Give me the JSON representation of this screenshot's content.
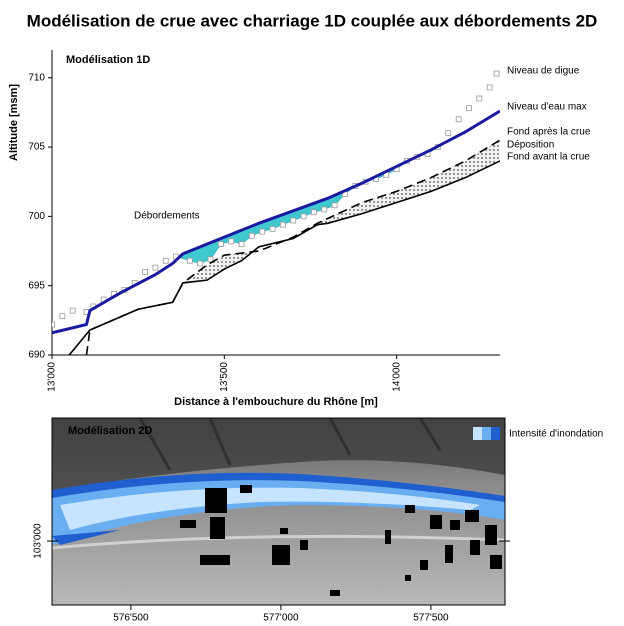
{
  "title": "Modélisation de crue avec charriage 1D couplée aux débordements 2D",
  "chart_data": [
    {
      "type": "line",
      "panel_label": "Modélisation 1D",
      "x_label": "Distance à l'embouchure du Rhône [m]",
      "y_label": "Altitude [msm]",
      "xlim": [
        13000,
        14300
      ],
      "ylim": [
        690,
        712
      ],
      "xticks": [
        {
          "value": 13000,
          "label": "13'000"
        },
        {
          "value": 13500,
          "label": "13'500"
        },
        {
          "value": 14000,
          "label": "14'000"
        }
      ],
      "yticks": [
        690,
        695,
        700,
        705,
        710
      ],
      "series": [
        {
          "name": "Niveau de digue",
          "color": "#999999",
          "style": "markers",
          "x": [
            13000,
            13030,
            13060,
            13100,
            13120,
            13150,
            13180,
            13210,
            13240,
            13270,
            13300,
            13330,
            13360,
            13400,
            13430,
            13460,
            13490,
            13520,
            13550,
            13580,
            13610,
            13640,
            13670,
            13700,
            13730,
            13760,
            13790,
            13820,
            13850,
            13880,
            13910,
            13940,
            13970,
            14000,
            14030,
            14060,
            14090,
            14120,
            14150,
            14180,
            14210,
            14240,
            14270,
            14290
          ],
          "values": [
            692.2,
            692.8,
            693.2,
            693.1,
            693.5,
            694.0,
            694.4,
            694.7,
            695.2,
            696.0,
            696.3,
            696.8,
            697.1,
            696.8,
            696.6,
            696.9,
            698.0,
            698.2,
            698.0,
            698.6,
            698.9,
            699.1,
            699.4,
            699.7,
            700.0,
            700.3,
            700.5,
            700.8,
            701.6,
            702.2,
            702.5,
            702.7,
            703.0,
            703.4,
            704.0,
            704.3,
            704.5,
            705.0,
            706.0,
            707.0,
            707.8,
            708.5,
            709.3,
            710.3
          ]
        },
        {
          "name": "Niveau d'eau max",
          "color": "#1a1aa0",
          "style": "thick",
          "x": [
            13000,
            13100,
            13110,
            13200,
            13300,
            13350,
            13380,
            13500,
            13600,
            13700,
            13800,
            13900,
            14000,
            14100,
            14200,
            14300
          ],
          "values": [
            691.6,
            692.2,
            693.2,
            694.5,
            695.8,
            696.6,
            697.3,
            698.5,
            699.5,
            700.4,
            701.3,
            702.4,
            703.6,
            704.8,
            706.1,
            707.6
          ]
        },
        {
          "name": "Fond après la crue",
          "color": "#000000",
          "style": "dashed",
          "x": [
            13100,
            13110,
            13250,
            13350,
            13380,
            13450,
            13500,
            13600,
            13700,
            13770,
            13900,
            14000,
            14100,
            14200,
            14300
          ],
          "values": [
            690.0,
            691.8,
            693.3,
            693.8,
            695.2,
            696.5,
            697.2,
            697.5,
            698.5,
            699.5,
            701.0,
            701.8,
            702.8,
            704.0,
            705.5
          ]
        },
        {
          "name": "Fond avant la crue",
          "color": "#000000",
          "style": "solid",
          "x": [
            13050,
            13110,
            13250,
            13350,
            13380,
            13450,
            13500,
            13550,
            13600,
            13700,
            13770,
            13800,
            13900,
            14000,
            14100,
            14200,
            14300
          ],
          "values": [
            690.0,
            691.8,
            693.3,
            693.8,
            695.2,
            695.4,
            696.2,
            696.8,
            697.8,
            698.4,
            699.4,
            699.5,
            700.2,
            701.0,
            701.8,
            702.8,
            704.0
          ]
        }
      ],
      "fills": [
        {
          "name": "Débordements",
          "color": "#40c8d0",
          "upper": "Niveau d'eau max",
          "lower": "Niveau de digue"
        },
        {
          "name": "Déposition",
          "color": "#555555",
          "upper": "Fond après la crue",
          "lower": "Fond avant la crue"
        }
      ]
    },
    {
      "type": "map",
      "panel_label": "Modélisation 2D",
      "legend_label": "Intensité d'inondation",
      "legend_colors": [
        "#c6e4ff",
        "#6aaef2",
        "#1f5fd0"
      ],
      "xlim": [
        576237,
        577747
      ],
      "ylim": [
        102787,
        103410
      ],
      "xticks": [
        {
          "value": 576500,
          "label": "576'500"
        },
        {
          "value": 577000,
          "label": "577'000"
        },
        {
          "value": 577500,
          "label": "577'500"
        }
      ],
      "yticks": [
        {
          "value": 103000,
          "label": "103'000"
        }
      ]
    }
  ]
}
